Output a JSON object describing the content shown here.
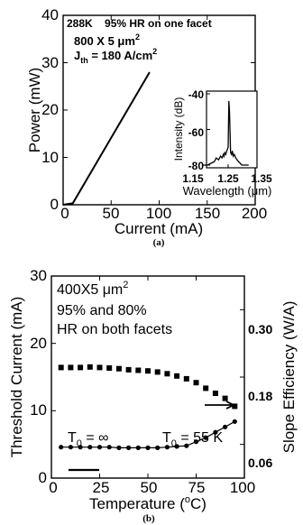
{
  "chart_data": [
    {
      "panel": "(a)",
      "type": "line",
      "xlabel": "Current (mA)",
      "ylabel": "Power (mW)",
      "xlim": [
        0,
        200
      ],
      "ylim": [
        0,
        40
      ],
      "xticks": [
        "0",
        "50",
        "100",
        "150",
        "200"
      ],
      "yticks": [
        "0",
        "10",
        "20",
        "30",
        "40"
      ],
      "annotations": {
        "header": "288K    95% HR on one facet",
        "size": "800 X 5 μm",
        "size_sup": "2",
        "jth_main": "J",
        "jth_sub": "th",
        "jth_value": " = 180 A/cm",
        "jth_sup": "2"
      },
      "series": [
        {
          "x": [
            0,
            10,
            90
          ],
          "y": [
            0,
            0.3,
            28
          ]
        }
      ],
      "inset": {
        "type": "line",
        "xlabel": "Wavelength (μm)",
        "ylabel": "Intensity (dB)",
        "xlim": [
          1.15,
          1.35
        ],
        "ylim": [
          -80,
          -40
        ],
        "xticks": [
          "1.15",
          "1.25",
          "1.35"
        ],
        "yticks": [
          "-40",
          "-60",
          "-80"
        ],
        "spectrum": {
          "x": [
            1.175,
            1.19,
            1.2,
            1.21,
            1.215,
            1.222,
            1.228,
            1.232,
            1.236,
            1.238,
            1.24,
            1.243,
            1.246,
            1.25,
            1.252,
            1.254,
            1.257,
            1.26,
            1.262,
            1.265,
            1.268,
            1.272,
            1.276,
            1.28,
            1.285,
            1.29,
            1.3,
            1.31
          ],
          "y": [
            -80,
            -80,
            -79,
            -78,
            -76,
            -77,
            -75,
            -76,
            -74,
            -75,
            -73,
            -74,
            -72,
            -70,
            -44,
            -50,
            -73,
            -74,
            -72,
            -75,
            -74,
            -76,
            -77,
            -78,
            -79,
            -80,
            -80,
            -80
          ]
        }
      }
    },
    {
      "panel": "(b)",
      "type": "scatter",
      "xlabel_main": "Temperature (",
      "xlabel_sup": "o",
      "xlabel_end": "C)",
      "ylabel": "Threshold Current (mA)",
      "y2label": "Slope Efficiency (W/A)",
      "xlim": [
        0,
        100
      ],
      "ylim": [
        0,
        30
      ],
      "y2lim": [
        0,
        0.36
      ],
      "xticks": [
        "0",
        "25",
        "50",
        "75",
        "100"
      ],
      "yticks": [
        "0",
        "10",
        "20",
        "30"
      ],
      "y2ticks": [
        "0.06",
        "0.18",
        "0.30"
      ],
      "annotations": {
        "size": "400X5 μm",
        "size_sup": "2",
        "line2": "95% and 80%",
        "line3": "HR on both facets",
        "t0_left_main": "T",
        "t0_left_sub": "0",
        "t0_left_val": " = ∞",
        "t0_right_main": "T",
        "t0_right_sub": "0",
        "t0_right_val": " = 55 K"
      },
      "threshold": {
        "x": [
          5,
          10,
          15,
          20,
          25,
          30,
          35,
          40,
          45,
          50,
          55,
          60,
          65,
          70,
          75,
          80,
          85,
          90,
          95
        ],
        "y": [
          4.6,
          4.6,
          4.6,
          4.6,
          4.6,
          4.6,
          4.5,
          4.5,
          4.5,
          4.5,
          4.5,
          4.6,
          4.7,
          4.8,
          5.4,
          6.0,
          6.8,
          7.6,
          8.4
        ]
      },
      "slope_efficiency": {
        "x": [
          5,
          10,
          15,
          20,
          25,
          30,
          35,
          40,
          45,
          50,
          55,
          60,
          65,
          70,
          75,
          80,
          85,
          90,
          95
        ],
        "y": [
          0.197,
          0.197,
          0.197,
          0.198,
          0.197,
          0.196,
          0.195,
          0.193,
          0.192,
          0.191,
          0.189,
          0.186,
          0.182,
          0.177,
          0.17,
          0.16,
          0.151,
          0.142,
          0.128
        ]
      }
    }
  ]
}
